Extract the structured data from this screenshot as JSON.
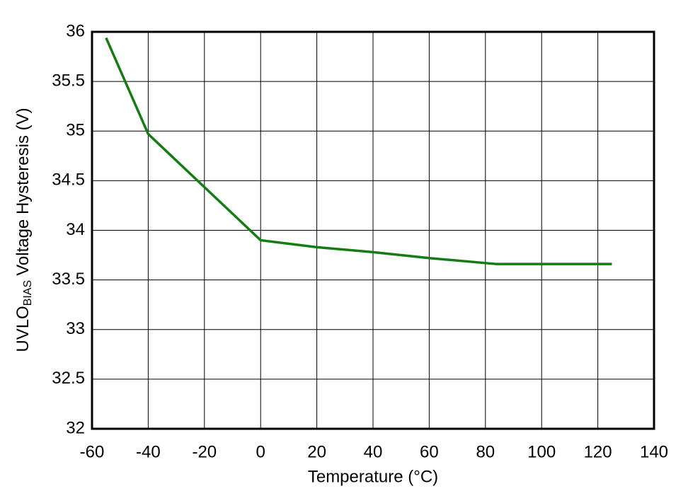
{
  "chart_data": {
    "type": "line",
    "x_label": "Temperature (°C)",
    "y_label": [
      "UVLO",
      "BIAS",
      "Voltage Hysteresis (V)"
    ],
    "x": [
      -55,
      -40,
      0,
      20,
      40,
      60,
      84,
      125
    ],
    "series": [
      {
        "color": "#137c13",
        "values": [
          35.94,
          34.97,
          33.9,
          33.83,
          33.78,
          33.72,
          33.66,
          33.66
        ]
      }
    ],
    "xlim": [
      -60,
      140
    ],
    "xticks": [
      -60,
      -40,
      -20,
      0,
      20,
      40,
      60,
      80,
      100,
      120,
      140
    ],
    "ylim": [
      32,
      36
    ],
    "yticks": [
      32,
      32.5,
      33,
      33.5,
      34,
      34.5,
      35,
      35.5,
      36
    ],
    "grid": true
  }
}
